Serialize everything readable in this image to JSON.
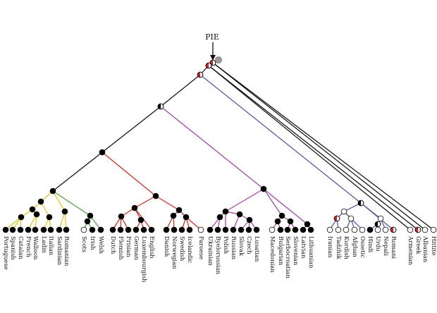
{
  "title": "PIE",
  "colors": {
    "italic": "#e3c520",
    "celtic": "#49a23a",
    "germanic": "#d9261c",
    "balto_slavic": "#a243a6",
    "indo_iranian": "#5555a6",
    "trunk": "#111111",
    "root_marker": "#9a9a9a"
  },
  "languages": [
    "Portuguese",
    "Spanish",
    "Catalan",
    "French",
    "Walloon",
    "Ladin",
    "Italian",
    "Sardinian",
    "Romanian",
    "Scots",
    "Irish",
    "Welsh",
    "Dutch",
    "Flemish",
    "Frisian",
    "German",
    "Luxembourgish",
    "English",
    "Danish",
    "Norwegian",
    "Swedish",
    "Icelandic",
    "Faroese",
    "Ukrainian",
    "Byelorussian",
    "Polish",
    "Russian",
    "Slovak",
    "Czech",
    "Lusatian",
    "Macedonian",
    "Bulgarian",
    "Serbocroatian",
    "Slovenian",
    "Latvian",
    "Lithuanian",
    "Iranian",
    "Tadzhik",
    "Kurdish",
    "Afghan",
    "Ossetic",
    "Hindi",
    "Urdu",
    "Nepali",
    "Romani",
    "Armenian",
    "Greek",
    "Albanian",
    "Hittite"
  ]
}
